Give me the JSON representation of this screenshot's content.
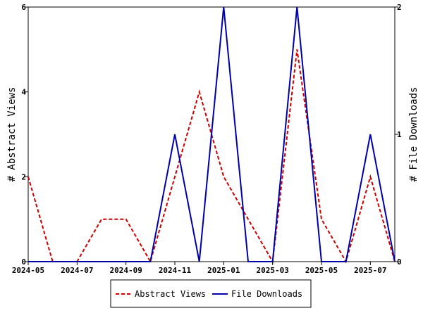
{
  "chart_data": {
    "type": "line",
    "title": "",
    "ylabel_left": "# Abstract Views",
    "ylabel_right": "# File Downloads",
    "x": [
      "2024-05",
      "2024-06",
      "2024-07",
      "2024-08",
      "2024-09",
      "2024-10",
      "2024-11",
      "2024-12",
      "2025-01",
      "2025-02",
      "2025-03",
      "2025-04",
      "2025-05",
      "2025-06",
      "2025-07",
      "2025-08"
    ],
    "x_tick_labels": [
      "2024-05",
      "2024-07",
      "2024-09",
      "2024-11",
      "2025-01",
      "2025-03",
      "2025-05",
      "2025-07"
    ],
    "ylim_left": [
      0,
      6
    ],
    "ylim_right": [
      0,
      2
    ],
    "y_ticks_left": [
      "0",
      "2",
      "4",
      "6"
    ],
    "y_ticks_right": [
      "0",
      "1",
      "2"
    ],
    "grid": false,
    "legend_position": "bottom",
    "series": [
      {
        "name": "Abstract Views",
        "axis": "left",
        "color": "#cc0000",
        "dash": "dashed",
        "values": [
          2,
          0,
          0,
          1,
          1,
          0,
          2,
          4,
          2,
          1,
          0,
          5,
          1,
          0,
          2,
          0
        ]
      },
      {
        "name": "File Downloads",
        "axis": "right",
        "color": "#0000aa",
        "dash": "solid",
        "values": [
          0,
          0,
          0,
          0,
          0,
          0,
          1,
          0,
          2,
          0,
          0,
          2,
          0,
          0,
          1,
          0
        ]
      }
    ]
  }
}
